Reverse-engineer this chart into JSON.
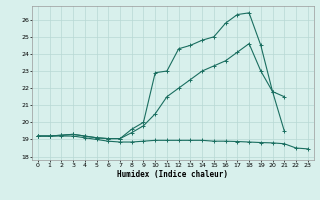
{
  "xlabel": "Humidex (Indice chaleur)",
  "xlim": [
    -0.5,
    23.5
  ],
  "ylim": [
    17.8,
    26.8
  ],
  "yticks": [
    18,
    19,
    20,
    21,
    22,
    23,
    24,
    25,
    26
  ],
  "xticks": [
    0,
    1,
    2,
    3,
    4,
    5,
    6,
    7,
    8,
    9,
    10,
    11,
    12,
    13,
    14,
    15,
    16,
    17,
    18,
    19,
    20,
    21,
    22,
    23
  ],
  "bg_color": "#d8f0ec",
  "grid_color": "#b8d8d4",
  "line_color": "#1a6e60",
  "line1_x": [
    0,
    1,
    2,
    3,
    4,
    5,
    6,
    7,
    8,
    9,
    10,
    11,
    12,
    13,
    14,
    15,
    16,
    17,
    18,
    19,
    20,
    21,
    22,
    23
  ],
  "line1_y": [
    19.2,
    19.2,
    19.2,
    19.2,
    19.1,
    19.0,
    18.9,
    18.85,
    18.85,
    18.9,
    18.95,
    18.95,
    18.95,
    18.95,
    18.95,
    18.9,
    18.9,
    18.88,
    18.85,
    18.82,
    18.8,
    18.75,
    18.5,
    18.45
  ],
  "line2_x": [
    0,
    1,
    2,
    3,
    4,
    5,
    6,
    7,
    8,
    9,
    10,
    11,
    12,
    13,
    14,
    15,
    16,
    17,
    18,
    19,
    20,
    21,
    22,
    23
  ],
  "line2_y": [
    19.2,
    19.2,
    19.25,
    19.3,
    19.2,
    19.1,
    19.05,
    19.05,
    19.6,
    20.0,
    22.9,
    23.0,
    24.3,
    24.5,
    24.8,
    25.0,
    25.8,
    26.3,
    26.4,
    24.5,
    21.8,
    19.5,
    null,
    null
  ],
  "line3_x": [
    0,
    1,
    2,
    3,
    4,
    5,
    6,
    7,
    8,
    9,
    10,
    11,
    12,
    13,
    14,
    15,
    16,
    17,
    18,
    19,
    20,
    21,
    22,
    23
  ],
  "line3_y": [
    19.2,
    19.2,
    19.25,
    19.3,
    19.2,
    19.1,
    19.05,
    19.05,
    19.4,
    19.8,
    20.5,
    21.5,
    22.0,
    22.5,
    23.0,
    23.3,
    23.6,
    24.1,
    24.6,
    23.0,
    21.8,
    21.5,
    null,
    null
  ]
}
